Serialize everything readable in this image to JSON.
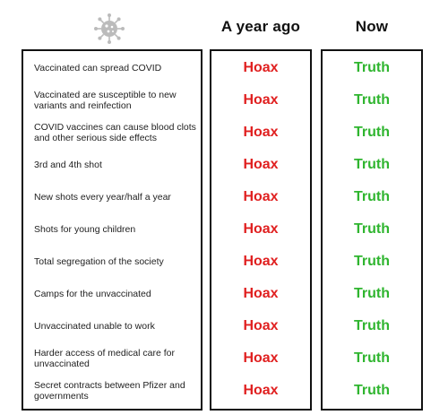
{
  "header": {
    "icon": "virus-icon",
    "col_ago": "A year ago",
    "col_now": "Now"
  },
  "colors": {
    "hoax": "#e02020",
    "truth": "#2fb52f"
  },
  "rows": [
    {
      "claim": "Vaccinated can spread COVID",
      "ago": "Hoax",
      "now": "Truth"
    },
    {
      "claim": "Vaccinated are susceptible to new variants and reinfection",
      "ago": "Hoax",
      "now": "Truth"
    },
    {
      "claim": "COVID vaccines can cause blood clots and other serious side effects",
      "ago": "Hoax",
      "now": "Truth"
    },
    {
      "claim": "3rd and 4th shot",
      "ago": "Hoax",
      "now": "Truth"
    },
    {
      "claim": "New shots every year/half a year",
      "ago": "Hoax",
      "now": "Truth"
    },
    {
      "claim": "Shots for young children",
      "ago": "Hoax",
      "now": "Truth"
    },
    {
      "claim": "Total segregation of the society",
      "ago": "Hoax",
      "now": "Truth"
    },
    {
      "claim": "Camps for the unvaccinated",
      "ago": "Hoax",
      "now": "Truth"
    },
    {
      "claim": "Unvaccinated unable to work",
      "ago": "Hoax",
      "now": "Truth"
    },
    {
      "claim": "Harder access of medical care for unvaccinated",
      "ago": "Hoax",
      "now": "Truth"
    },
    {
      "claim": "Secret contracts between Pfizer and governments",
      "ago": "Hoax",
      "now": "Truth"
    }
  ]
}
